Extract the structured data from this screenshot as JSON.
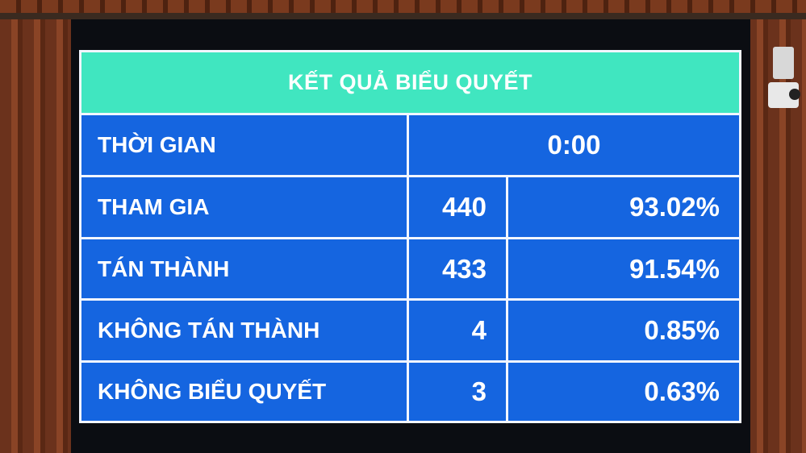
{
  "board": {
    "title": "KẾT QUẢ BIỂU QUYẾT",
    "time": {
      "label": "THỜI GIAN",
      "value": "0:00"
    },
    "rows": [
      {
        "label": "THAM GIA",
        "count": "440",
        "percent": "93.02%"
      },
      {
        "label": "TÁN THÀNH",
        "count": "433",
        "percent": "91.54%"
      },
      {
        "label": "KHÔNG TÁN THÀNH",
        "count": "4",
        "percent": "0.85%"
      },
      {
        "label": "KHÔNG BIỂU QUYẾT",
        "count": "3",
        "percent": "0.63%"
      }
    ]
  },
  "colors": {
    "header": "#40e6c0",
    "cell": "#1565e0",
    "text": "#ffffff"
  }
}
